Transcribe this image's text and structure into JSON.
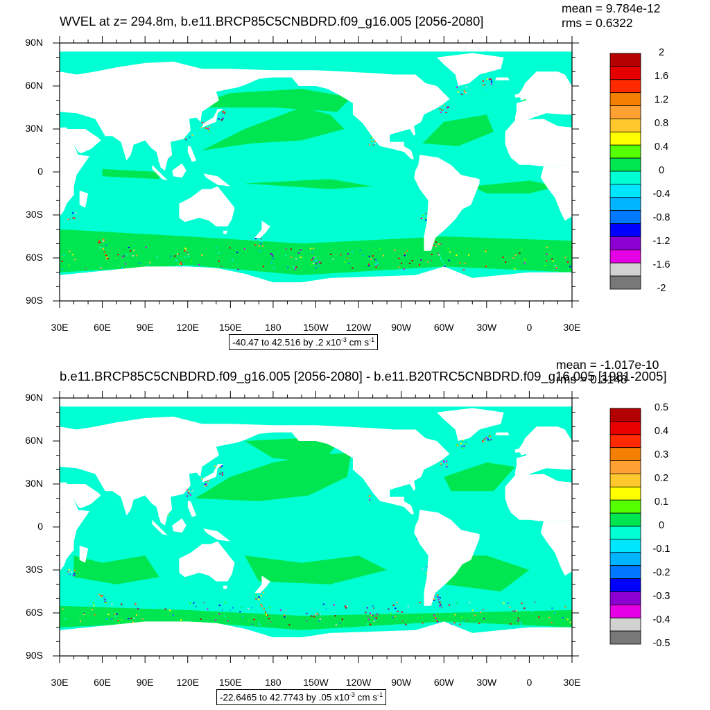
{
  "top": {
    "title": "WVEL at z= 294.8m, b.e11.BRCP85C5CNBDRD.f09_g16.005 [2056-2080]",
    "mean": "mean = 9.784e-12",
    "rms": "rms = 0.6322",
    "range_text": "-40.47 to 42.516 by .2 x10",
    "range_exp": "-3",
    "range_unit": " cm s",
    "range_unit_exp": "-1",
    "colorbar_labels": [
      "2",
      "1.6",
      "1.2",
      "0.8",
      "0.4",
      "0",
      "-0.4",
      "-0.8",
      "-1.2",
      "-1.6",
      "-2"
    ]
  },
  "bottom": {
    "title": "b.e11.BRCP85C5CNBDRD.f09_g16.005 [2056-2080] - b.e11.B20TRC5CNBDRD.f09_g16.005 [1981-2005]",
    "mean": "mean = -1.017e-10",
    "rms": "rms = 0.3148",
    "range_text": "-22.6465 to 42.7743 by .05 x10",
    "range_exp": "-3",
    "range_unit": " cm s",
    "range_unit_exp": "-1",
    "colorbar_labels": [
      "0.5",
      "0.4",
      "0.3",
      "0.2",
      "0.1",
      "0",
      "-0.1",
      "-0.2",
      "-0.3",
      "-0.4",
      "-0.5"
    ]
  },
  "axes": {
    "lat_labels": [
      "90N",
      "60N",
      "30N",
      "0",
      "30S",
      "60S",
      "90S"
    ],
    "lon_labels": [
      "30E",
      "60E",
      "90E",
      "120E",
      "150E",
      "180",
      "150W",
      "120W",
      "90W",
      "60W",
      "30W",
      "0",
      "30E"
    ]
  },
  "colors": {
    "palette": [
      "#b40000",
      "#e60000",
      "#ff2a00",
      "#f57f00",
      "#ffa033",
      "#ffc82d",
      "#ffff00",
      "#55ff00",
      "#00e650",
      "#00ffd2",
      "#00e6ff",
      "#00b4ff",
      "#0078ff",
      "#0000ff",
      "#8c00d2",
      "#e600e6",
      "#d2d2d2",
      "#787878"
    ],
    "ocean_base": "#00ffd2",
    "ocean_green": "#00e650",
    "land": "#ffffff"
  }
}
